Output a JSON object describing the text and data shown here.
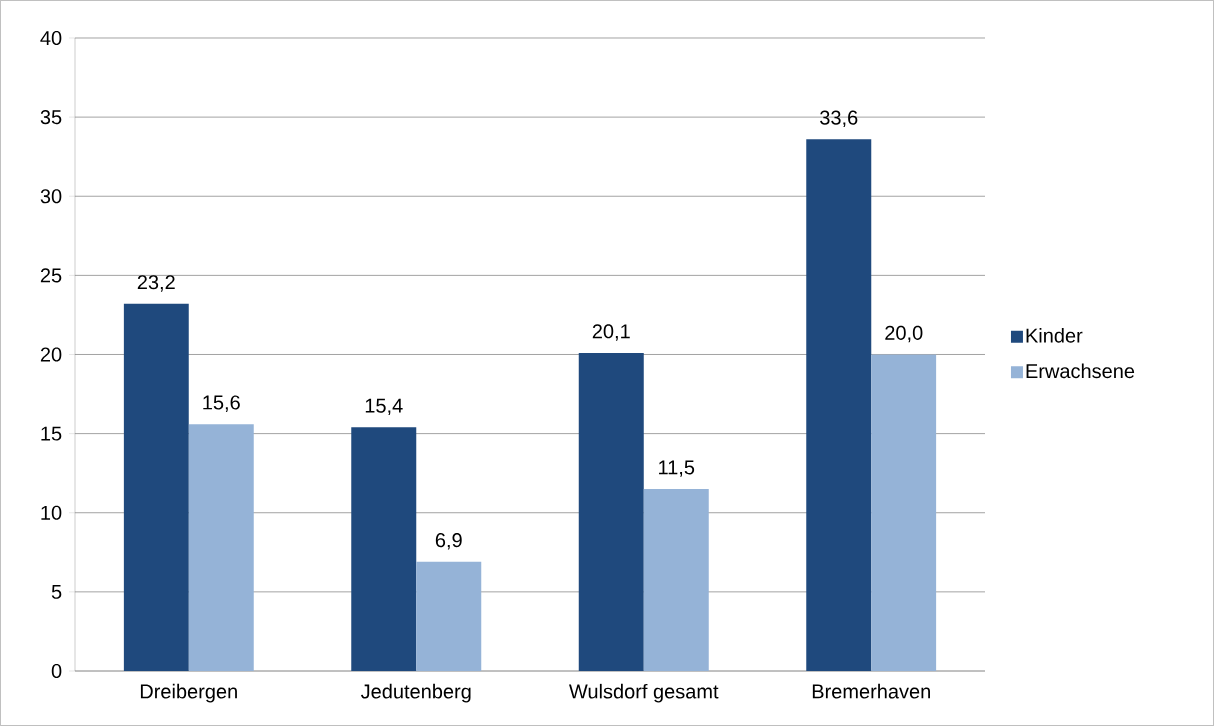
{
  "chart_data": {
    "type": "bar",
    "categories": [
      "Dreibergen",
      "Jedutenberg",
      "Wulsdorf gesamt",
      "Bremerhaven"
    ],
    "series": [
      {
        "name": "Kinder",
        "color": "#1f497d",
        "values": [
          23.2,
          15.4,
          20.1,
          33.6
        ],
        "value_labels": [
          "23,2",
          "15,4",
          "20,1",
          "33,6"
        ]
      },
      {
        "name": "Erwachsene",
        "color": "#95b3d7",
        "values": [
          15.6,
          6.9,
          11.5,
          20.0
        ],
        "value_labels": [
          "15,6",
          "6,9",
          "11,5",
          "20,0"
        ]
      }
    ],
    "ylim": [
      0,
      40
    ],
    "yticks": [
      0,
      5,
      10,
      15,
      20,
      25,
      30,
      35,
      40
    ],
    "grid": "y",
    "legend": "right"
  }
}
